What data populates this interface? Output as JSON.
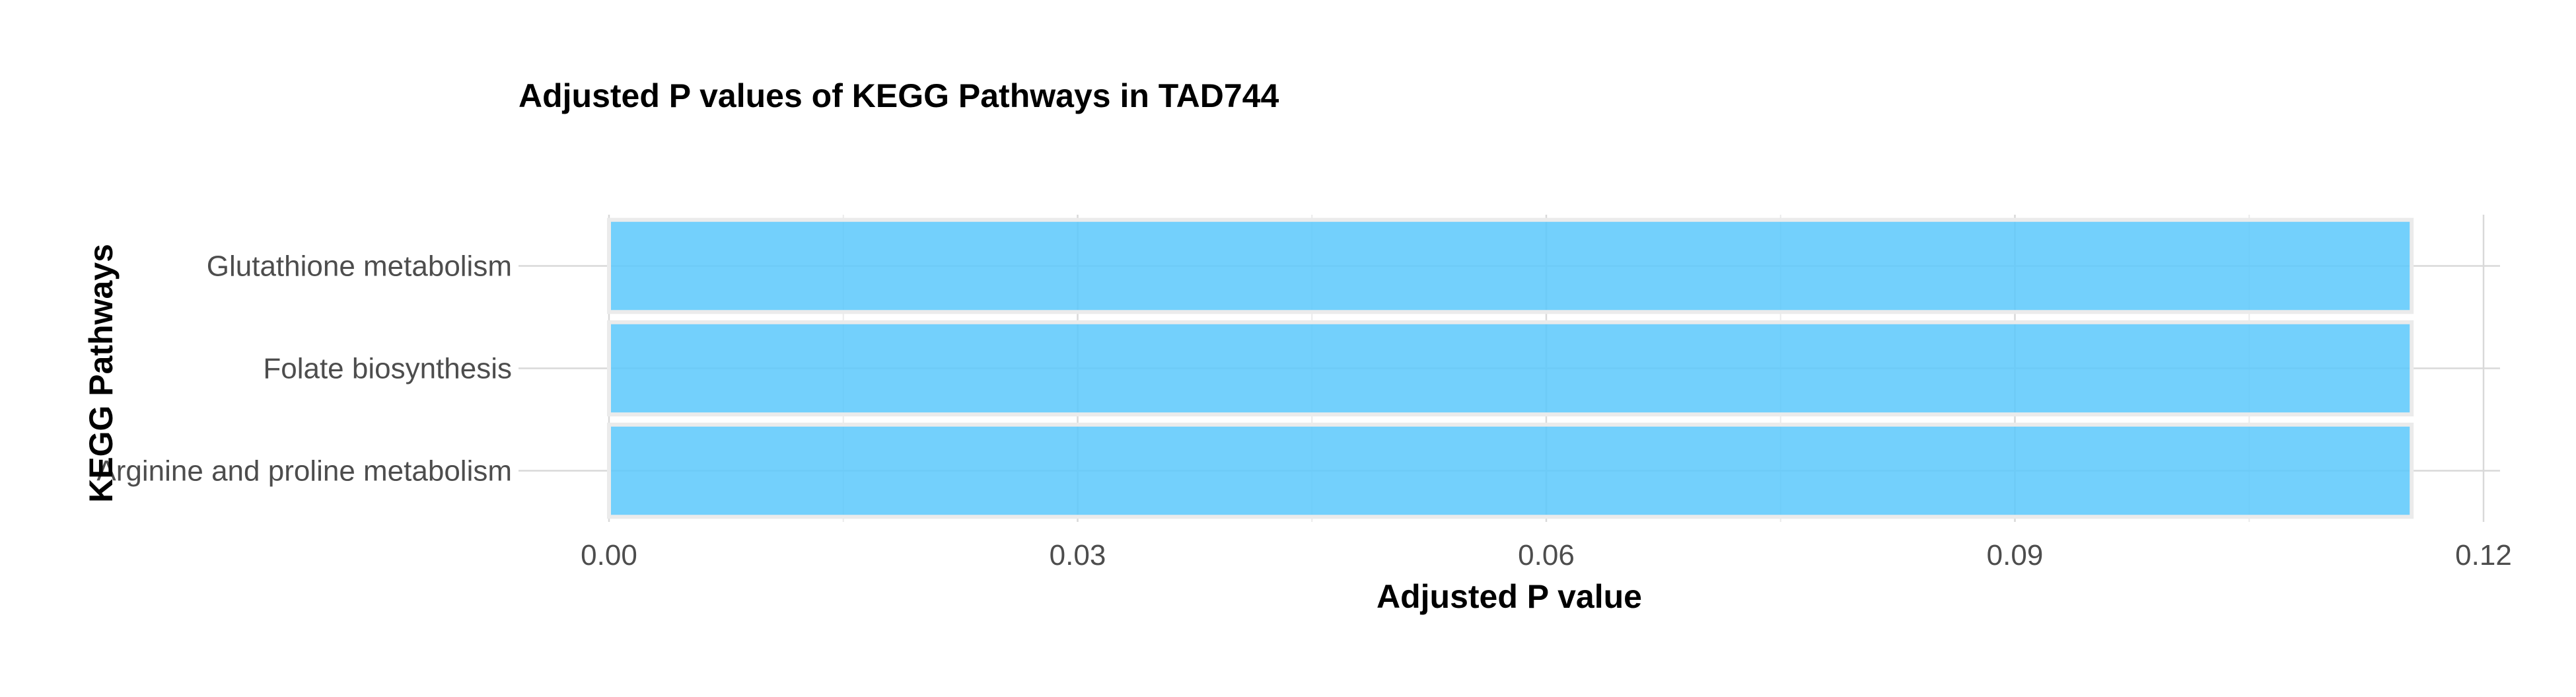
{
  "chart_data": {
    "type": "bar",
    "orientation": "horizontal",
    "title": "Adjusted P values of KEGG Pathways in TAD744",
    "xlabel": "Adjusted P value",
    "ylabel": "KEGG Pathways",
    "categories": [
      "Arginine and proline metabolism",
      "Folate biosynthesis",
      "Glutathione metabolism"
    ],
    "values": [
      0.1154,
      0.1154,
      0.1154
    ],
    "xlim": [
      0,
      0.12
    ],
    "xticks": [
      0.0,
      0.03,
      0.06,
      0.09,
      0.12
    ],
    "xtick_labels": [
      "0.00",
      "0.03",
      "0.06",
      "0.09",
      "0.12"
    ],
    "bar_color": "#5bc8fb",
    "grid": true,
    "legend": "none"
  }
}
